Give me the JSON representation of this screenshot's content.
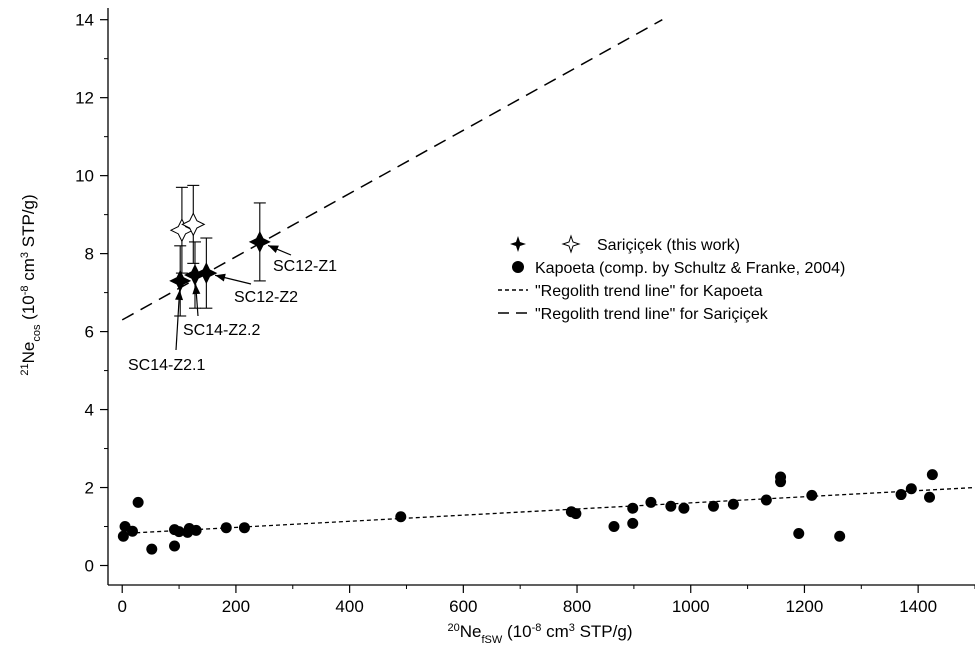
{
  "chart_data": {
    "type": "scatter",
    "xlabel": {
      "prefix_sup": "20",
      "base": "Ne",
      "sub": "fSW",
      "unit_pre": " (10",
      "unit_sup1": "-8",
      "unit_mid": " cm",
      "unit_sup2": "3",
      "unit_post": " STP/g)"
    },
    "ylabel": {
      "prefix_sup": "21",
      "base": "Ne",
      "sub": "cos",
      "unit_pre": " (10",
      "unit_sup1": "-8",
      "unit_mid": " cm",
      "unit_sup2": "3",
      "unit_post": " STP/g)"
    },
    "xlim": [
      -25,
      1500
    ],
    "ylim": [
      -0.5,
      14.3
    ],
    "x_ticks": [
      0,
      200,
      400,
      600,
      800,
      1000,
      1200,
      1400
    ],
    "y_ticks": [
      0,
      2,
      4,
      6,
      8,
      10,
      12,
      14
    ],
    "x_tick_labels": [
      "0",
      "200",
      "400",
      "600",
      "800",
      "1000",
      "1200",
      "1400"
    ],
    "y_tick_labels": [
      "0",
      "2",
      "4",
      "6",
      "8",
      "10",
      "12",
      "14"
    ],
    "grid": false,
    "legend_placement": "center-right",
    "legend": {
      "saricicek": "Sariçiçek (this work)",
      "kapoeta": "Kapoeta (comp. by Schultz & Franke, 2004)",
      "trend_kapoeta": "\"Regolith trend line\" for Kapoeta",
      "trend_saricicek": "\"Regolith trend line\" for Sariçiçek"
    },
    "series": [
      {
        "name": "Sariçiçek (this work)",
        "marker": "filled-star",
        "points": [
          {
            "x": 102,
            "y": 7.3,
            "err": 0.9,
            "label": "SC14-Z2.1"
          },
          {
            "x": 128,
            "y": 7.45,
            "err": 0.85,
            "label": "SC14-Z2.2"
          },
          {
            "x": 148,
            "y": 7.5,
            "err": 0.9,
            "label": "SC12-Z2"
          },
          {
            "x": 242,
            "y": 8.3,
            "err": 1.0,
            "label": "SC12-Z1"
          }
        ]
      },
      {
        "name": "Sariçiçek (this work)",
        "marker": "open-star",
        "points": [
          {
            "x": 105,
            "y": 8.6,
            "err": 1.1
          },
          {
            "x": 125,
            "y": 8.75,
            "err": 1.0
          }
        ]
      },
      {
        "name": "Kapoeta (comp. by Schultz & Franke, 2004)",
        "marker": "filled-circle",
        "points": [
          {
            "x": 2,
            "y": 0.75
          },
          {
            "x": 5,
            "y": 1.0
          },
          {
            "x": 18,
            "y": 0.88
          },
          {
            "x": 28,
            "y": 1.62
          },
          {
            "x": 52,
            "y": 0.42
          },
          {
            "x": 92,
            "y": 0.5
          },
          {
            "x": 92,
            "y": 0.92
          },
          {
            "x": 100,
            "y": 0.87
          },
          {
            "x": 115,
            "y": 0.85
          },
          {
            "x": 118,
            "y": 0.95
          },
          {
            "x": 130,
            "y": 0.9
          },
          {
            "x": 183,
            "y": 0.97
          },
          {
            "x": 215,
            "y": 0.97
          },
          {
            "x": 490,
            "y": 1.25
          },
          {
            "x": 790,
            "y": 1.38
          },
          {
            "x": 798,
            "y": 1.33
          },
          {
            "x": 865,
            "y": 1.0
          },
          {
            "x": 898,
            "y": 1.08
          },
          {
            "x": 898,
            "y": 1.47
          },
          {
            "x": 930,
            "y": 1.62
          },
          {
            "x": 965,
            "y": 1.52
          },
          {
            "x": 988,
            "y": 1.47
          },
          {
            "x": 1040,
            "y": 1.52
          },
          {
            "x": 1075,
            "y": 1.57
          },
          {
            "x": 1133,
            "y": 1.68
          },
          {
            "x": 1158,
            "y": 2.15
          },
          {
            "x": 1158,
            "y": 2.27
          },
          {
            "x": 1190,
            "y": 0.82
          },
          {
            "x": 1213,
            "y": 1.8
          },
          {
            "x": 1262,
            "y": 0.75
          },
          {
            "x": 1370,
            "y": 1.82
          },
          {
            "x": 1388,
            "y": 1.97
          },
          {
            "x": 1420,
            "y": 1.75
          },
          {
            "x": 1425,
            "y": 2.33
          }
        ]
      }
    ],
    "trend_lines": [
      {
        "name": "\"Regolith trend line\" for Kapoeta",
        "style": "short-dash",
        "x": [
          0,
          1500
        ],
        "y": [
          0.82,
          2.0
        ]
      },
      {
        "name": "\"Regolith trend line\" for Sariçiçek",
        "style": "long-dash",
        "x": [
          0,
          950
        ],
        "y": [
          6.3,
          14.0
        ]
      }
    ],
    "annotations": [
      {
        "text": "SC12-Z1",
        "target": 3
      },
      {
        "text": "SC12-Z2",
        "target": 2
      },
      {
        "text": "SC14-Z2.2",
        "target": 1
      },
      {
        "text": "SC14-Z2.1",
        "target": 0
      }
    ]
  }
}
